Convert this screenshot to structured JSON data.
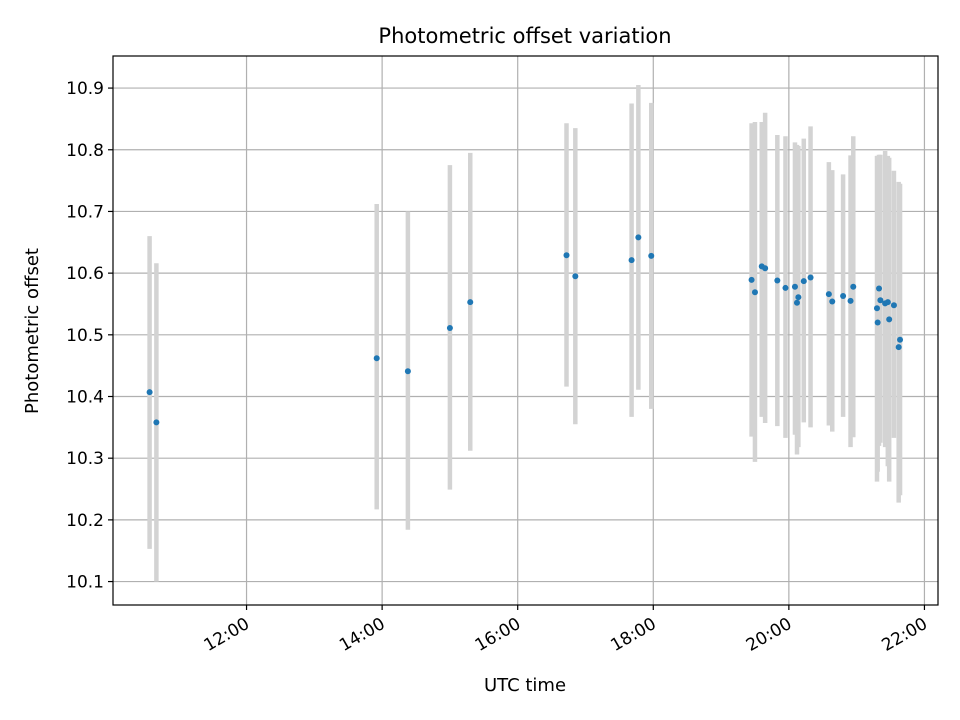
{
  "chart_data": {
    "type": "scatter",
    "title": "Photometric offset variation",
    "xlabel": "UTC time",
    "ylabel": "Photometric offset",
    "x_unit": "UTC hours",
    "xlim": [
      10.03,
      22.2
    ],
    "ylim": [
      10.062,
      10.952
    ],
    "grid": true,
    "colors": {
      "marker": "#1f77b4",
      "errorbar": "#d3d3d3",
      "grid": "#b0b0b0",
      "axis": "#000000"
    },
    "xticks": [
      {
        "value": 12,
        "label": "12:00"
      },
      {
        "value": 14,
        "label": "14:00"
      },
      {
        "value": 16,
        "label": "16:00"
      },
      {
        "value": 18,
        "label": "18:00"
      },
      {
        "value": 20,
        "label": "20:00"
      },
      {
        "value": 22,
        "label": "22:00"
      }
    ],
    "yticks": [
      {
        "value": 10.1,
        "label": "10.1"
      },
      {
        "value": 10.2,
        "label": "10.2"
      },
      {
        "value": 10.3,
        "label": "10.3"
      },
      {
        "value": 10.4,
        "label": "10.4"
      },
      {
        "value": 10.5,
        "label": "10.5"
      },
      {
        "value": 10.6,
        "label": "10.6"
      },
      {
        "value": 10.7,
        "label": "10.7"
      },
      {
        "value": 10.8,
        "label": "10.8"
      },
      {
        "value": 10.9,
        "label": "10.9"
      }
    ],
    "points": [
      {
        "x": 10.57,
        "y": 10.407,
        "lo": 10.153,
        "hi": 10.66
      },
      {
        "x": 10.67,
        "y": 10.358,
        "lo": 10.1,
        "hi": 10.616
      },
      {
        "x": 13.92,
        "y": 10.462,
        "lo": 10.217,
        "hi": 10.712
      },
      {
        "x": 14.38,
        "y": 10.441,
        "lo": 10.184,
        "hi": 10.7
      },
      {
        "x": 15.0,
        "y": 10.511,
        "lo": 10.249,
        "hi": 10.775
      },
      {
        "x": 15.3,
        "y": 10.553,
        "lo": 10.312,
        "hi": 10.795
      },
      {
        "x": 16.72,
        "y": 10.629,
        "lo": 10.416,
        "hi": 10.843
      },
      {
        "x": 16.85,
        "y": 10.595,
        "lo": 10.355,
        "hi": 10.835
      },
      {
        "x": 17.68,
        "y": 10.621,
        "lo": 10.367,
        "hi": 10.875
      },
      {
        "x": 17.78,
        "y": 10.658,
        "lo": 10.411,
        "hi": 10.905
      },
      {
        "x": 17.97,
        "y": 10.628,
        "lo": 10.38,
        "hi": 10.876
      },
      {
        "x": 19.45,
        "y": 10.589,
        "lo": 10.335,
        "hi": 10.843
      },
      {
        "x": 19.5,
        "y": 10.569,
        "lo": 10.294,
        "hi": 10.845
      },
      {
        "x": 19.6,
        "y": 10.611,
        "lo": 10.367,
        "hi": 10.845
      },
      {
        "x": 19.65,
        "y": 10.608,
        "lo": 10.357,
        "hi": 10.86
      },
      {
        "x": 19.83,
        "y": 10.588,
        "lo": 10.352,
        "hi": 10.824
      },
      {
        "x": 19.95,
        "y": 10.576,
        "lo": 10.333,
        "hi": 10.822
      },
      {
        "x": 20.09,
        "y": 10.578,
        "lo": 10.338,
        "hi": 10.812
      },
      {
        "x": 20.12,
        "y": 10.552,
        "lo": 10.306,
        "hi": 10.808
      },
      {
        "x": 20.14,
        "y": 10.561,
        "lo": 10.318,
        "hi": 10.806
      },
      {
        "x": 20.22,
        "y": 10.587,
        "lo": 10.358,
        "hi": 10.818
      },
      {
        "x": 20.32,
        "y": 10.593,
        "lo": 10.35,
        "hi": 10.838
      },
      {
        "x": 20.59,
        "y": 10.566,
        "lo": 10.353,
        "hi": 10.78
      },
      {
        "x": 20.64,
        "y": 10.554,
        "lo": 10.343,
        "hi": 10.767
      },
      {
        "x": 20.8,
        "y": 10.563,
        "lo": 10.367,
        "hi": 10.76
      },
      {
        "x": 20.91,
        "y": 10.555,
        "lo": 10.318,
        "hi": 10.791
      },
      {
        "x": 20.95,
        "y": 10.578,
        "lo": 10.334,
        "hi": 10.822
      },
      {
        "x": 21.3,
        "y": 10.543,
        "lo": 10.262,
        "hi": 10.79
      },
      {
        "x": 21.31,
        "y": 10.52,
        "lo": 10.278,
        "hi": 10.79
      },
      {
        "x": 21.33,
        "y": 10.575,
        "lo": 10.32,
        "hi": 10.792
      },
      {
        "x": 21.35,
        "y": 10.556,
        "lo": 10.325,
        "hi": 10.792
      },
      {
        "x": 21.42,
        "y": 10.551,
        "lo": 10.318,
        "hi": 10.798
      },
      {
        "x": 21.46,
        "y": 10.553,
        "lo": 10.287,
        "hi": 10.79
      },
      {
        "x": 21.48,
        "y": 10.525,
        "lo": 10.262,
        "hi": 10.787
      },
      {
        "x": 21.55,
        "y": 10.548,
        "lo": 10.333,
        "hi": 10.766
      },
      {
        "x": 21.62,
        "y": 10.48,
        "lo": 10.228,
        "hi": 10.748
      },
      {
        "x": 21.64,
        "y": 10.492,
        "lo": 10.24,
        "hi": 10.745
      }
    ]
  }
}
